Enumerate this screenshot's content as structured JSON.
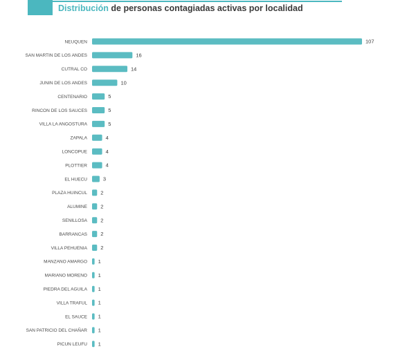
{
  "header": {
    "title_accent": "Distribución",
    "title_rest": " de personas contagiadas activas por localidad"
  },
  "colors": {
    "accent": "#4bb7bf",
    "bar": "#5bbcc2"
  },
  "chart_data": {
    "type": "bar",
    "orientation": "horizontal",
    "title": "Distribución de personas contagiadas activas por localidad",
    "xlabel": "",
    "ylabel": "",
    "xlim": [
      0,
      107
    ],
    "grid": false,
    "legend": "none",
    "categories": [
      "NEUQUEN",
      "SAN MARTIN DE LOS ANDES",
      "CUTRAL CO",
      "JUNIN DE LOS ANDES",
      "CENTENARIO",
      "RINCON DE LOS SAUCES",
      "VILLA LA ANGOSTURA",
      "ZAPALA",
      "LONCOPUE",
      "PLOTTIER",
      "EL HUECU",
      "PLAZA HUINCUL",
      "ALUMINE",
      "SENILLOSA",
      "BARRANCAS",
      "VILLA PEHUENIA",
      "MANZANO AMARGO",
      "MARIANO MORENO",
      "PIEDRA DEL AGUILA",
      "VILLA TRAFUL",
      "EL SAUCE",
      "SAN PATRICIO DEL CHAÑAR",
      "PICUN LEUFU"
    ],
    "values": [
      107,
      16,
      14,
      10,
      5,
      5,
      5,
      4,
      4,
      4,
      3,
      2,
      2,
      2,
      2,
      2,
      1,
      1,
      1,
      1,
      1,
      1,
      1
    ]
  }
}
